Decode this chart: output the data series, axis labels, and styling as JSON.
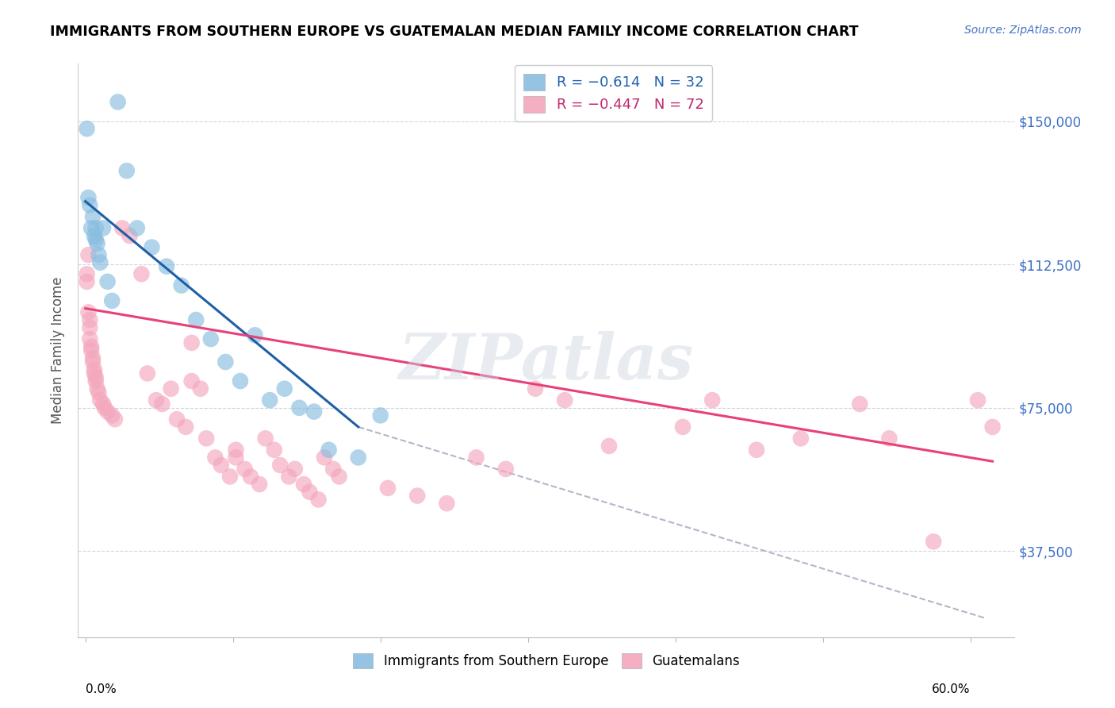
{
  "title": "IMMIGRANTS FROM SOUTHERN EUROPE VS GUATEMALAN MEDIAN FAMILY INCOME CORRELATION CHART",
  "source": "Source: ZipAtlas.com",
  "ylabel": "Median Family Income",
  "ytick_labels": [
    "$37,500",
    "$75,000",
    "$112,500",
    "$150,000"
  ],
  "ytick_values": [
    37500,
    75000,
    112500,
    150000
  ],
  "ymin": 15000,
  "ymax": 165000,
  "xmin": -0.005,
  "xmax": 0.63,
  "legend_blue_r": "R = −0.614",
  "legend_blue_n": "N = 32",
  "legend_pink_r": "R = −0.447",
  "legend_pink_n": "N = 72",
  "watermark": "ZIPatlas",
  "blue_color": "#89bde0",
  "pink_color": "#f4a7bc",
  "blue_line_color": "#1f5fa6",
  "pink_line_color": "#e8417a",
  "blue_scatter": [
    [
      0.001,
      148000
    ],
    [
      0.002,
      130000
    ],
    [
      0.003,
      128000
    ],
    [
      0.004,
      122000
    ],
    [
      0.005,
      125000
    ],
    [
      0.006,
      120000
    ],
    [
      0.007,
      119000
    ],
    [
      0.007,
      122000
    ],
    [
      0.008,
      118000
    ],
    [
      0.009,
      115000
    ],
    [
      0.01,
      113000
    ],
    [
      0.012,
      122000
    ],
    [
      0.015,
      108000
    ],
    [
      0.018,
      103000
    ],
    [
      0.022,
      155000
    ],
    [
      0.028,
      137000
    ],
    [
      0.035,
      122000
    ],
    [
      0.045,
      117000
    ],
    [
      0.055,
      112000
    ],
    [
      0.065,
      107000
    ],
    [
      0.075,
      98000
    ],
    [
      0.085,
      93000
    ],
    [
      0.095,
      87000
    ],
    [
      0.105,
      82000
    ],
    [
      0.115,
      94000
    ],
    [
      0.125,
      77000
    ],
    [
      0.135,
      80000
    ],
    [
      0.145,
      75000
    ],
    [
      0.155,
      74000
    ],
    [
      0.165,
      64000
    ],
    [
      0.185,
      62000
    ],
    [
      0.2,
      73000
    ]
  ],
  "pink_scatter": [
    [
      0.001,
      110000
    ],
    [
      0.001,
      108000
    ],
    [
      0.002,
      115000
    ],
    [
      0.002,
      100000
    ],
    [
      0.003,
      98000
    ],
    [
      0.003,
      96000
    ],
    [
      0.003,
      93000
    ],
    [
      0.004,
      91000
    ],
    [
      0.004,
      90000
    ],
    [
      0.005,
      88000
    ],
    [
      0.005,
      87000
    ],
    [
      0.006,
      85000
    ],
    [
      0.006,
      84000
    ],
    [
      0.007,
      83000
    ],
    [
      0.007,
      82000
    ],
    [
      0.008,
      80000
    ],
    [
      0.009,
      79000
    ],
    [
      0.01,
      77000
    ],
    [
      0.012,
      76000
    ],
    [
      0.013,
      75000
    ],
    [
      0.015,
      74000
    ],
    [
      0.018,
      73000
    ],
    [
      0.02,
      72000
    ],
    [
      0.025,
      122000
    ],
    [
      0.03,
      120000
    ],
    [
      0.038,
      110000
    ],
    [
      0.042,
      84000
    ],
    [
      0.048,
      77000
    ],
    [
      0.052,
      76000
    ],
    [
      0.058,
      80000
    ],
    [
      0.062,
      72000
    ],
    [
      0.068,
      70000
    ],
    [
      0.072,
      92000
    ],
    [
      0.072,
      82000
    ],
    [
      0.078,
      80000
    ],
    [
      0.082,
      67000
    ],
    [
      0.088,
      62000
    ],
    [
      0.092,
      60000
    ],
    [
      0.098,
      57000
    ],
    [
      0.102,
      64000
    ],
    [
      0.102,
      62000
    ],
    [
      0.108,
      59000
    ],
    [
      0.112,
      57000
    ],
    [
      0.118,
      55000
    ],
    [
      0.122,
      67000
    ],
    [
      0.128,
      64000
    ],
    [
      0.132,
      60000
    ],
    [
      0.138,
      57000
    ],
    [
      0.142,
      59000
    ],
    [
      0.148,
      55000
    ],
    [
      0.152,
      53000
    ],
    [
      0.158,
      51000
    ],
    [
      0.162,
      62000
    ],
    [
      0.168,
      59000
    ],
    [
      0.172,
      57000
    ],
    [
      0.205,
      54000
    ],
    [
      0.225,
      52000
    ],
    [
      0.245,
      50000
    ],
    [
      0.265,
      62000
    ],
    [
      0.285,
      59000
    ],
    [
      0.305,
      80000
    ],
    [
      0.325,
      77000
    ],
    [
      0.355,
      65000
    ],
    [
      0.405,
      70000
    ],
    [
      0.425,
      77000
    ],
    [
      0.455,
      64000
    ],
    [
      0.485,
      67000
    ],
    [
      0.525,
      76000
    ],
    [
      0.545,
      67000
    ],
    [
      0.575,
      40000
    ],
    [
      0.605,
      77000
    ],
    [
      0.615,
      70000
    ]
  ],
  "blue_line_x": [
    0.0,
    0.185
  ],
  "blue_line_y": [
    129000,
    70000
  ],
  "pink_line_x": [
    0.0,
    0.615
  ],
  "pink_line_y": [
    101000,
    61000
  ],
  "dashed_line_x": [
    0.185,
    0.61
  ],
  "dashed_line_y": [
    70000,
    20000
  ]
}
